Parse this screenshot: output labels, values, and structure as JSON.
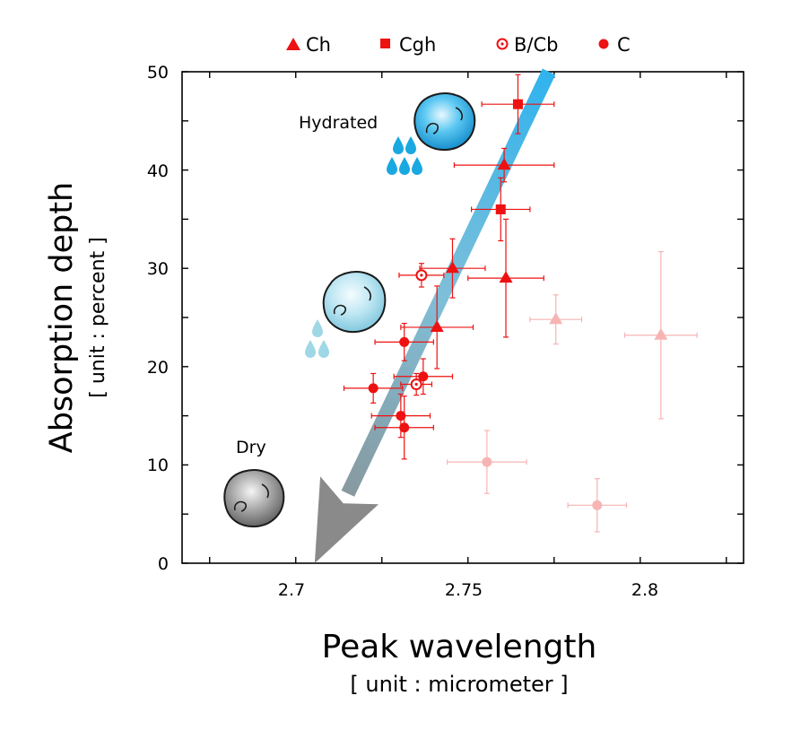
{
  "chart_data": {
    "type": "scatter",
    "xlabel": "Peak wavelength",
    "xunit": "[ unit : micrometer ]",
    "ylabel": "Absorption depth",
    "yunit": "[ unit : percent ]",
    "xlim": [
      2.667,
      2.83
    ],
    "ylim": [
      0,
      50
    ],
    "xticks": [
      2.7,
      2.75,
      2.8
    ],
    "xtick_labels": [
      "2.7",
      "2.75",
      "2.8"
    ],
    "yticks": [
      0,
      10,
      20,
      30,
      40,
      50
    ],
    "ytick_labels": [
      "0",
      "10",
      "20",
      "30",
      "40",
      "50"
    ],
    "grid": false,
    "legend_position": "top",
    "colors": {
      "series": "#ee1111",
      "faded": "#f7b4b4",
      "arrow_start": "#33aee8",
      "arrow_end": "#8a8a8a"
    },
    "series": [
      {
        "name": "Ch",
        "marker": "triangle",
        "points": [
          {
            "x": 2.7605,
            "y": 40.5,
            "xerr": 0.0145,
            "yerr": 1.7,
            "faded": false
          },
          {
            "x": 2.7455,
            "y": 30.0,
            "xerr": 0.0095,
            "yerr": 3.0,
            "faded": false
          },
          {
            "x": 2.761,
            "y": 29.0,
            "xerr": 0.011,
            "yerr": 6.0,
            "faded": false
          },
          {
            "x": 2.741,
            "y": 24.0,
            "xerr": 0.0105,
            "yerr": 4.2,
            "faded": false
          },
          {
            "x": 2.7755,
            "y": 24.8,
            "xerr": 0.0075,
            "yerr": 2.5,
            "faded": true
          },
          {
            "x": 2.806,
            "y": 23.2,
            "xerr": 0.0105,
            "yerr": 8.5,
            "faded": true
          }
        ]
      },
      {
        "name": "Cgh",
        "marker": "square",
        "points": [
          {
            "x": 2.7645,
            "y": 46.7,
            "xerr": 0.0105,
            "yerr": 3.0,
            "faded": false
          },
          {
            "x": 2.7595,
            "y": 36.0,
            "xerr": 0.0085,
            "yerr": 3.2,
            "faded": false
          }
        ]
      },
      {
        "name": "B/Cb",
        "marker": "open-circle",
        "points": [
          {
            "x": 2.7365,
            "y": 29.3,
            "xerr": 0.0065,
            "yerr": 1.2,
            "faded": false
          },
          {
            "x": 2.735,
            "y": 18.2,
            "xerr": 0.0045,
            "yerr": 1.1,
            "faded": false
          }
        ]
      },
      {
        "name": "C",
        "marker": "circle",
        "points": [
          {
            "x": 2.7315,
            "y": 22.5,
            "xerr": 0.0085,
            "yerr": 1.9,
            "faded": false
          },
          {
            "x": 2.737,
            "y": 19.0,
            "xerr": 0.0085,
            "yerr": 1.8,
            "faded": false
          },
          {
            "x": 2.7225,
            "y": 17.8,
            "xerr": 0.0085,
            "yerr": 1.5,
            "faded": false
          },
          {
            "x": 2.7305,
            "y": 15.0,
            "xerr": 0.0085,
            "yerr": 2.2,
            "faded": false
          },
          {
            "x": 2.7315,
            "y": 13.8,
            "xerr": 0.0085,
            "yerr": 3.2,
            "faded": false
          },
          {
            "x": 2.7555,
            "y": 10.3,
            "xerr": 0.0115,
            "yerr": 3.2,
            "faded": true
          },
          {
            "x": 2.7875,
            "y": 5.9,
            "xerr": 0.0085,
            "yerr": 2.7,
            "faded": true
          }
        ]
      }
    ],
    "annotations": [
      {
        "text": "Hydrated",
        "icon": "hydrated-asteroid-icon",
        "drops": 5
      },
      {
        "text": "",
        "icon": "semi-hydrated-asteroid-icon",
        "drops": 3
      },
      {
        "text": "Dry",
        "icon": "dry-asteroid-icon",
        "drops": 0
      }
    ],
    "trend_arrow": {
      "from": {
        "x": 2.7735,
        "y": 50
      },
      "to": {
        "x": 2.7055,
        "y": 0
      }
    }
  }
}
